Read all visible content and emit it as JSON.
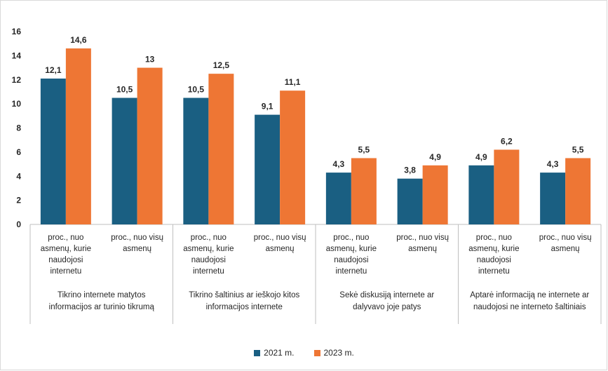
{
  "colors": {
    "series_2021": "#1a5f82",
    "series_2023": "#ee7634",
    "axis": "#bfbfbf"
  },
  "chart_data": {
    "type": "bar",
    "title": "",
    "ylim": [
      0,
      16
    ],
    "yticks": [
      0,
      2,
      4,
      6,
      8,
      10,
      12,
      14,
      16
    ],
    "grid": false,
    "legend_position": "bottom",
    "groups": [
      {
        "label_lines": [
          "Tikrino internete matytos",
          "informacijos ar turinio tikrumą"
        ],
        "categories": [
          {
            "label_lines": [
              "proc., nuo",
              "asmenų, kurie",
              "naudojosi",
              "internetu"
            ],
            "values": [
              12.1,
              14.6
            ],
            "labels": [
              "12,1",
              "14,6"
            ]
          },
          {
            "label_lines": [
              "proc., nuo visų",
              "asmenų"
            ],
            "values": [
              10.5,
              13
            ],
            "labels": [
              "10,5",
              "13"
            ]
          }
        ]
      },
      {
        "label_lines": [
          "Tikrino šaltinius ar ieškojo kitos",
          "informacijos internete"
        ],
        "categories": [
          {
            "label_lines": [
              "proc., nuo",
              "asmenų, kurie",
              "naudojosi",
              "internetu"
            ],
            "values": [
              10.5,
              12.5
            ],
            "labels": [
              "10,5",
              "12,5"
            ]
          },
          {
            "label_lines": [
              "proc., nuo visų",
              "asmenų"
            ],
            "values": [
              9.1,
              11.1
            ],
            "labels": [
              "9,1",
              "11,1"
            ]
          }
        ]
      },
      {
        "label_lines": [
          "Sekė diskusiją internete ar",
          "dalyvavo joje patys"
        ],
        "categories": [
          {
            "label_lines": [
              "proc., nuo",
              "asmenų, kurie",
              "naudojosi",
              "internetu"
            ],
            "values": [
              4.3,
              5.5
            ],
            "labels": [
              "4,3",
              "5,5"
            ]
          },
          {
            "label_lines": [
              "proc., nuo visų",
              "asmenų"
            ],
            "values": [
              3.8,
              4.9
            ],
            "labels": [
              "3,8",
              "4,9"
            ]
          }
        ]
      },
      {
        "label_lines": [
          "Aptarė informaciją ne internete ar",
          "naudojosi ne interneto šaltiniais"
        ],
        "categories": [
          {
            "label_lines": [
              "proc., nuo",
              "asmenų, kurie",
              "naudojosi",
              "internetu"
            ],
            "values": [
              4.9,
              6.2
            ],
            "labels": [
              "4,9",
              "6,2"
            ]
          },
          {
            "label_lines": [
              "proc., nuo visų",
              "asmenų"
            ],
            "values": [
              4.3,
              5.5
            ],
            "labels": [
              "4,3",
              "5,5"
            ]
          }
        ]
      }
    ],
    "series": [
      {
        "name": "2021 m.",
        "color": "#1a5f82"
      },
      {
        "name": "2023 m.",
        "color": "#ee7634"
      }
    ]
  }
}
